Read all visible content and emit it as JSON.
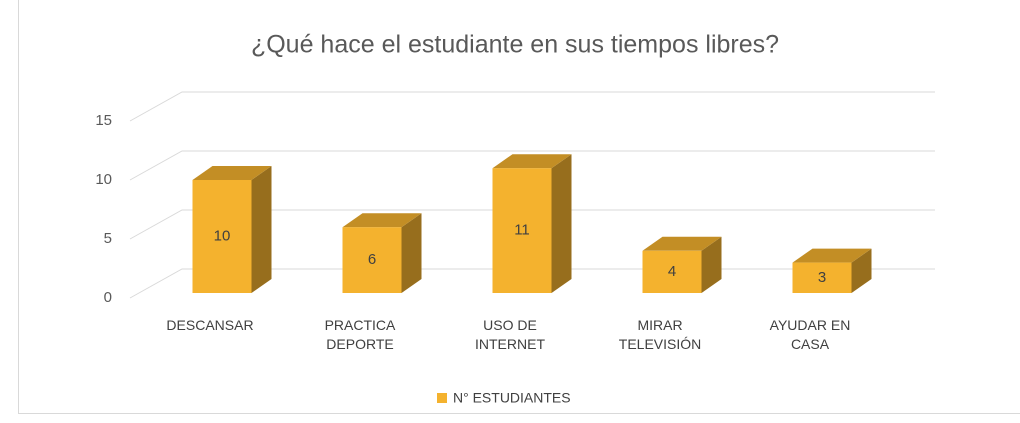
{
  "chart_data": {
    "type": "bar3d",
    "title": "¿Qué hace el estudiante en sus tiempos libres?",
    "categories": [
      "DESCANSAR",
      "PRACTICA DEPORTE",
      "USO DE INTERNET",
      "MIRAR TELEVISIÓN",
      "AYUDAR EN CASA"
    ],
    "series": [
      {
        "name": "N° ESTUDIANTES",
        "color": "#f4b22e",
        "values": [
          10,
          6,
          11,
          4,
          3
        ]
      }
    ],
    "ylim": [
      0,
      15
    ],
    "yticks": [
      0,
      5,
      10,
      15
    ],
    "grid": true,
    "legend": "bottom"
  }
}
